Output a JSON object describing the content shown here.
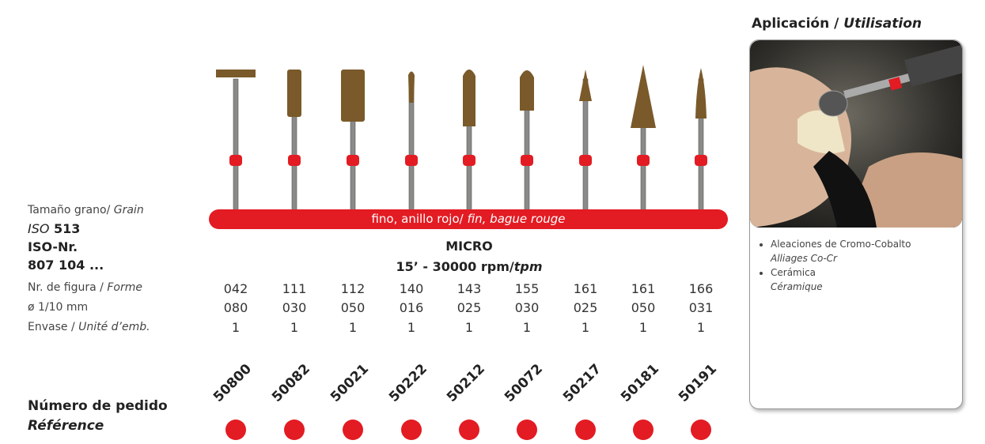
{
  "labels": {
    "grain": "Tamaño grano/ ",
    "grain_fr": "Grain",
    "iso_513_a": "ISO",
    "iso_513_b": " 513",
    "iso_nr": "ISO-Nr.",
    "iso_code": "807 104 ...",
    "figure": "Nr. de figura / ",
    "figure_fr": "Forme",
    "diameter": "ø 1/10 mm",
    "pack": "Envase / ",
    "pack_fr": "Unité d’emb.",
    "order": "Número de pedido",
    "order_fr": "Référence"
  },
  "grain_bar": {
    "text": "fino, anillo rojo/ ",
    "text_fr": "fin, bague rouge",
    "color": "#e31b23"
  },
  "series": {
    "name": "MICRO",
    "speed": "15’ - 30000 rpm/",
    "speed_unit": "tpm"
  },
  "products": [
    {
      "head": "disc",
      "figure": "042",
      "diameter": "080",
      "pack": "1",
      "order": "50800"
    },
    {
      "head": "cylinder",
      "figure": "111",
      "diameter": "030",
      "pack": "1",
      "order": "50082"
    },
    {
      "head": "cylinder-wide",
      "figure": "112",
      "diameter": "050",
      "pack": "1",
      "order": "50021"
    },
    {
      "head": "needle",
      "figure": "140",
      "diameter": "016",
      "pack": "1",
      "order": "50222"
    },
    {
      "head": "round-cylinder",
      "figure": "143",
      "diameter": "025",
      "pack": "1",
      "order": "50212"
    },
    {
      "head": "round-cylinder-short",
      "figure": "155",
      "diameter": "030",
      "pack": "1",
      "order": "50072"
    },
    {
      "head": "small-cone",
      "figure": "161",
      "diameter": "025",
      "pack": "1",
      "order": "50217"
    },
    {
      "head": "large-cone",
      "figure": "161",
      "diameter": "050",
      "pack": "1",
      "order": "50181"
    },
    {
      "head": "flame",
      "figure": "166",
      "diameter": "031",
      "pack": "1",
      "order": "50191"
    }
  ],
  "application": {
    "title": "Aplicación / ",
    "title_fr": "Utilisation",
    "items": [
      {
        "es": "Aleaciones de Cromo-Cobalto",
        "fr": "Alliages Co-Cr"
      },
      {
        "es": "Cerámica",
        "fr": "Céramique"
      }
    ]
  },
  "colors": {
    "accent": "#e31b23",
    "diamond": "#7a5a2a",
    "shaft": "#8a8a88"
  }
}
